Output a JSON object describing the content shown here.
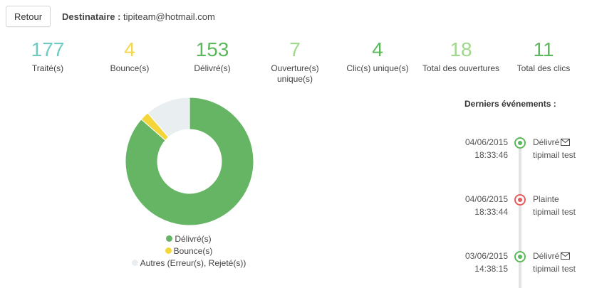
{
  "header": {
    "back_label": "Retour",
    "recipient_label": "Destinataire :",
    "recipient_value": "tipiteam@hotmail.com"
  },
  "stats": [
    {
      "value": "177",
      "label": "Traité(s)",
      "color": "#6fcabf"
    },
    {
      "value": "4",
      "label": "Bounce(s)",
      "color": "#f4d64b"
    },
    {
      "value": "153",
      "label": "Délivré(s)",
      "color": "#5cb85c"
    },
    {
      "value": "7",
      "label": "Ouverture(s) unique(s)",
      "color": "#9fd88b"
    },
    {
      "value": "4",
      "label": "Clic(s) unique(s)",
      "color": "#5cb85c"
    },
    {
      "value": "18",
      "label": "Total des ouvertures",
      "color": "#9fd88b"
    },
    {
      "value": "11",
      "label": "Total des clics",
      "color": "#5cb85c"
    }
  ],
  "chart_data": {
    "type": "pie",
    "title": "",
    "series": [
      {
        "name": "Délivré(s)",
        "value": 153,
        "color": "#66b564"
      },
      {
        "name": "Bounce(s)",
        "value": 4,
        "color": "#f4d63a"
      },
      {
        "name": "Autres (Erreur(s), Rejeté(s))",
        "value": 20,
        "color": "#e9eef0"
      }
    ],
    "legend_position": "bottom"
  },
  "events": {
    "title": "Derniers événements :",
    "items": [
      {
        "date": "04/06/2015",
        "time": "18:33:46",
        "status": "Délivré",
        "name": "tipimail test",
        "status_color": "green",
        "icon": "envelope-icon"
      },
      {
        "date": "04/06/2015",
        "time": "18:33:44",
        "status": "Plainte",
        "name": "tipimail test",
        "status_color": "red",
        "icon": ""
      },
      {
        "date": "03/06/2015",
        "time": "14:38:15",
        "status": "Délivré",
        "name": "tipimail test",
        "status_color": "green",
        "icon": "envelope-icon"
      }
    ]
  }
}
